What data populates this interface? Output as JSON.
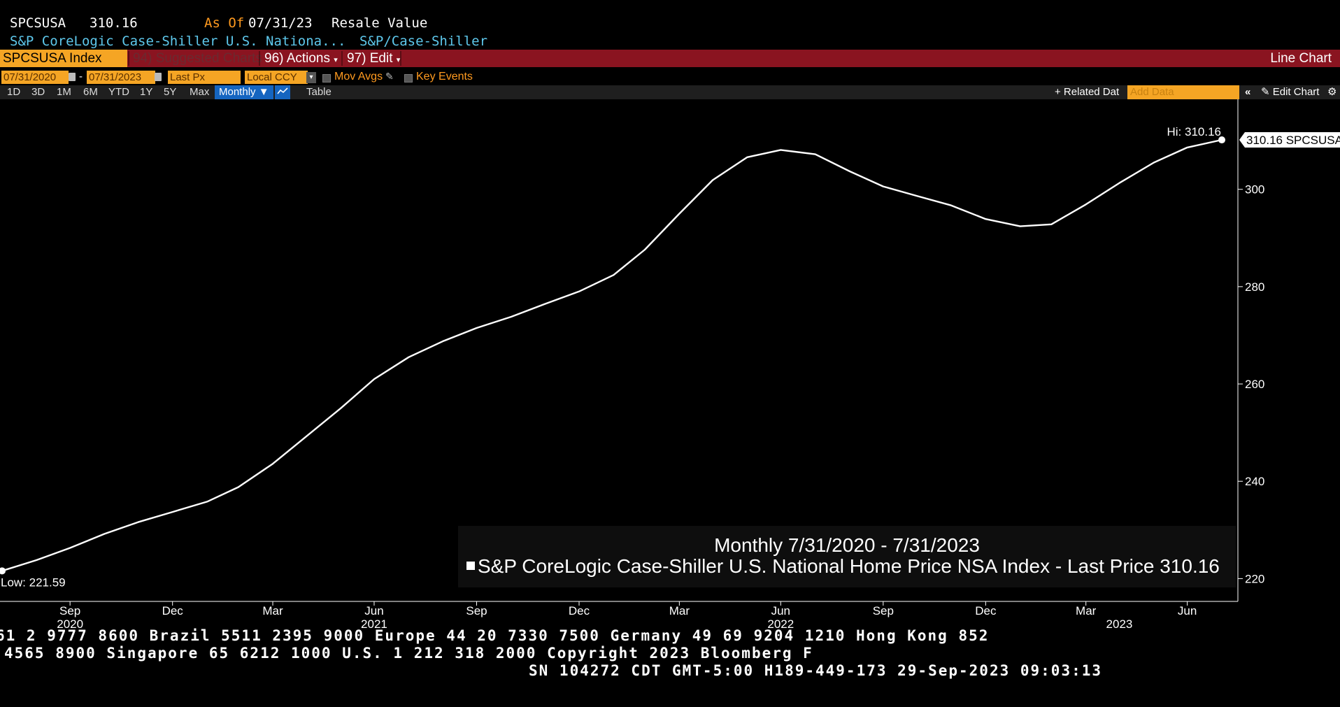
{
  "header": {
    "ticker": "SPCSUSA",
    "price": "310.16",
    "as_of_label": "As Of",
    "as_of_date": "07/31/23",
    "value_type": "Resale Value",
    "name": "S&P CoreLogic Case-Shiller U.S. Nationa...",
    "source": "S&P/Case-Shiller"
  },
  "menubar": {
    "security": "SPCSUSA Index",
    "suggested": "94) Suggested Charts",
    "actions": "96) Actions",
    "edit": "97) Edit",
    "chart_type": "Line Chart"
  },
  "daterow": {
    "start": "07/31/2020",
    "dash": "-",
    "end": "07/31/2023",
    "field": "Last Px",
    "currency": "Local CCY",
    "mov_avgs": "Mov Avgs",
    "key_events": "Key Events"
  },
  "toolbar": {
    "ranges": [
      "1D",
      "3D",
      "1M",
      "6M",
      "YTD",
      "1Y",
      "5Y",
      "Max"
    ],
    "frequency": "Monthly ▼",
    "table": "Table",
    "related": "+ Related Dat",
    "add_data_placeholder": "Add Data",
    "edit_chart": "Edit Chart"
  },
  "annotations": {
    "hi": "Hi: 310.16",
    "low": "Low: 221.59",
    "last_tag": "310.16 SPCSUSA"
  },
  "legend": {
    "period": "Monthly 7/31/2020 - 7/31/2023",
    "series": "S&P CoreLogic Case-Shiller U.S. National Home Price NSA Index - Last Price",
    "last": "310.16"
  },
  "ticker_lines": [
    "61 2 9777 8600 Brazil 5511 2395 9000 Europe 44 20 7330 7500 Germany 49 69 9204 1210 Hong Kong 852",
    "4565 8900        Singapore 65 6212 1000       U.S. 1 212 318 2000        Copyright 2023 Bloomberg F",
    "SN 104272 CDT  GMT-5:00 H189-449-173 29-Sep-2023 09:03:13"
  ],
  "colors": {
    "accent_red": "#8a1420",
    "accent_orange": "#f5a524",
    "link_blue": "#5ec8ec",
    "line": "#ffffff"
  },
  "chart_data": {
    "type": "line",
    "x": [
      "2020-07-31",
      "2020-08-31",
      "2020-09-30",
      "2020-10-31",
      "2020-11-30",
      "2020-12-31",
      "2021-01-31",
      "2021-02-28",
      "2021-03-31",
      "2021-04-30",
      "2021-05-31",
      "2021-06-30",
      "2021-07-31",
      "2021-08-31",
      "2021-09-30",
      "2021-10-31",
      "2021-11-30",
      "2021-12-31",
      "2022-01-31",
      "2022-02-28",
      "2022-03-31",
      "2022-04-30",
      "2022-05-31",
      "2022-06-30",
      "2022-07-31",
      "2022-08-31",
      "2022-09-30",
      "2022-10-31",
      "2022-11-30",
      "2022-12-31",
      "2023-01-31",
      "2023-02-28",
      "2023-03-31",
      "2023-04-30",
      "2023-05-31",
      "2023-06-30",
      "2023-07-31"
    ],
    "series": [
      {
        "name": "S&P CoreLogic Case-Shiller U.S. National Home Price NSA Index - Last Price",
        "values": [
          221.59,
          223.8,
          226.3,
          229.2,
          231.6,
          233.7,
          235.8,
          238.8,
          243.6,
          249.2,
          255.0,
          261.0,
          265.5,
          268.8,
          271.5,
          273.8,
          276.4,
          279.0,
          282.4,
          287.6,
          295.0,
          301.9,
          306.6,
          308.1,
          307.2,
          303.7,
          300.6,
          298.6,
          296.7,
          293.9,
          292.4,
          292.8,
          296.9,
          301.3,
          305.5,
          308.6,
          310.16
        ]
      }
    ],
    "x_ticks": [
      {
        "label": "Sep",
        "date": "2020-09-30"
      },
      {
        "label": "Dec",
        "date": "2020-12-31"
      },
      {
        "label": "Mar",
        "date": "2021-03-31"
      },
      {
        "label": "Jun",
        "date": "2021-06-30"
      },
      {
        "label": "Sep",
        "date": "2021-09-30"
      },
      {
        "label": "Dec",
        "date": "2021-12-31"
      },
      {
        "label": "Mar",
        "date": "2022-03-31"
      },
      {
        "label": "Jun",
        "date": "2022-06-30"
      },
      {
        "label": "Sep",
        "date": "2022-09-30"
      },
      {
        "label": "Dec",
        "date": "2022-12-31"
      },
      {
        "label": "Mar",
        "date": "2023-03-31"
      },
      {
        "label": "Jun",
        "date": "2023-06-30"
      }
    ],
    "year_labels": [
      {
        "label": "2020",
        "date": "2020-09-30"
      },
      {
        "label": "2021",
        "date": "2021-06-30"
      },
      {
        "label": "2022",
        "date": "2022-06-30"
      },
      {
        "label": "2023",
        "date": "2023-04-30"
      }
    ],
    "y_ticks": [
      220,
      240,
      260,
      280,
      300
    ],
    "ylim": [
      215.6,
      318.5
    ],
    "grid": false,
    "hi": 310.16,
    "low": 221.59
  }
}
